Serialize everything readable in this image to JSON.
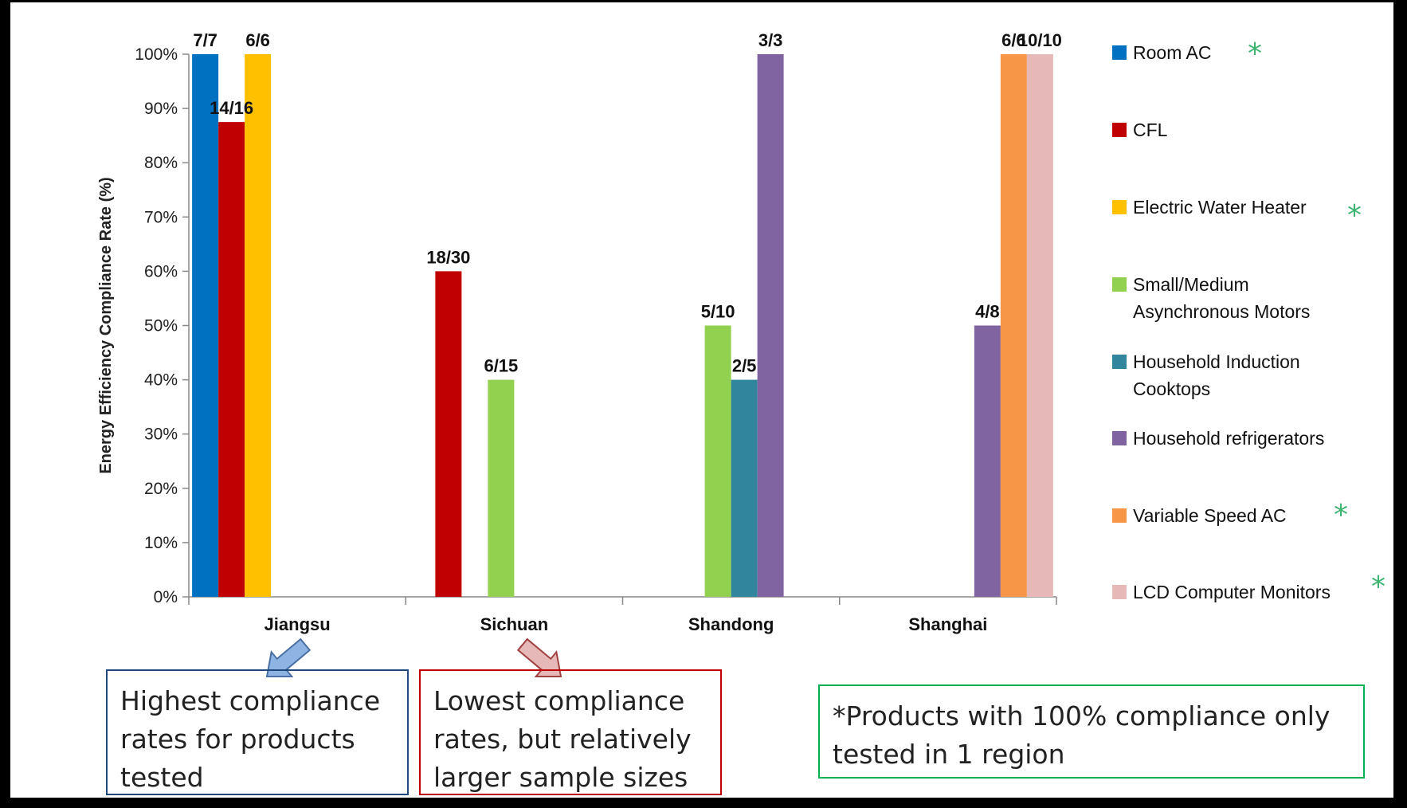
{
  "chart_data": {
    "type": "bar",
    "ylabel": "Energy Efficiency Compliance Rate (%)",
    "ylim": [
      0,
      100
    ],
    "y_ticks": [
      "0%",
      "10%",
      "20%",
      "30%",
      "40%",
      "50%",
      "60%",
      "70%",
      "80%",
      "90%",
      "100%"
    ],
    "categories": [
      "Jiangsu",
      "Sichuan",
      "Shandong",
      "Shanghai"
    ],
    "grid": false,
    "legend_position": "right",
    "series": [
      {
        "name": "Room AC",
        "color": "#0070c0",
        "star": "*",
        "values": [
          100,
          null,
          null,
          null
        ],
        "labels": [
          "7/7",
          "",
          "",
          ""
        ]
      },
      {
        "name": "CFL",
        "color": "#c00000",
        "star": "",
        "values": [
          87.5,
          60,
          null,
          null
        ],
        "labels": [
          "14/16",
          "18/30",
          "",
          ""
        ]
      },
      {
        "name": "Electric Water Heater",
        "color": "#ffc000",
        "star": "*",
        "values": [
          100,
          null,
          null,
          null
        ],
        "labels": [
          "6/6",
          "",
          "",
          ""
        ]
      },
      {
        "name": "Small/Medium Asynchronous Motors",
        "name_lines": [
          "Small/Medium",
          "Asynchronous Motors"
        ],
        "color": "#92d050",
        "star": "",
        "values": [
          null,
          40,
          50,
          null
        ],
        "labels": [
          "",
          "6/15",
          "5/10",
          ""
        ]
      },
      {
        "name": "Household Induction Cooktops",
        "name_lines": [
          "Household Induction",
          "Cooktops"
        ],
        "color": "#31859c",
        "star": "",
        "values": [
          null,
          null,
          40,
          null
        ],
        "labels": [
          "",
          "",
          "2/5",
          ""
        ]
      },
      {
        "name": "Household refrigerators",
        "color": "#8064a2",
        "star": "",
        "values": [
          null,
          null,
          100,
          50
        ],
        "labels": [
          "",
          "",
          "3/3",
          "4/8"
        ]
      },
      {
        "name": "Variable Speed AC",
        "color": "#f79646",
        "star": "*",
        "values": [
          null,
          null,
          null,
          100
        ],
        "labels": [
          "",
          "",
          "",
          "6/6"
        ]
      },
      {
        "name": "LCD Computer Monitors",
        "color": "#e6b9b8",
        "star": "*",
        "values": [
          null,
          null,
          null,
          100
        ],
        "labels": [
          "",
          "",
          "",
          "10/10"
        ]
      }
    ]
  },
  "notes": {
    "jiangsu": "Highest compliance rates for products tested",
    "sichuan": "Lowest compliance rates, but relatively larger sample sizes",
    "footnote": "*Products with 100% compliance only tested in 1 region"
  },
  "colors": {
    "jiangsu_arrow": "#8eb4e3",
    "sichuan_arrow": "#e6b9b8",
    "jiangsu_box_border": "#1f497d",
    "sichuan_box_border": "#c00000",
    "footnote_box_border": "#00b050"
  }
}
